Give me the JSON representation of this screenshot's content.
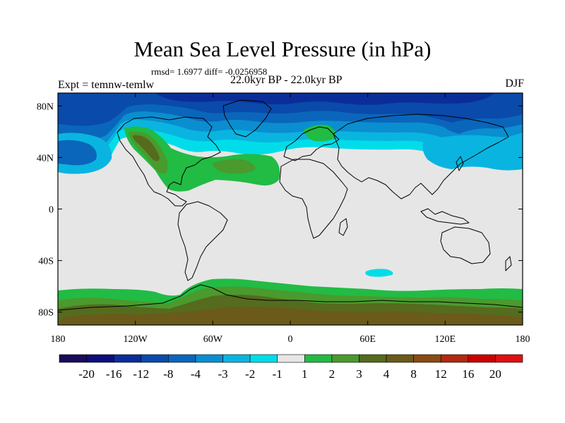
{
  "header": {
    "title": "Mean Sea Level Pressure (in hPa)",
    "stats": "rmsd= 1.6977 diff= -0.0256958",
    "period": "22.0kyr BP - 22.0kyr BP",
    "experiment": "Expt = temnw-temlw",
    "season": "DJF"
  },
  "axes": {
    "lat_labels": [
      "80N",
      "40N",
      "0",
      "40S",
      "80S"
    ],
    "lat_values": [
      80,
      40,
      0,
      -40,
      -80
    ],
    "lon_labels": [
      "180",
      "120W",
      "60W",
      "0",
      "60E",
      "120E",
      "180"
    ],
    "lon_values": [
      -180,
      -120,
      -60,
      0,
      60,
      120,
      180
    ],
    "lat_range": [
      -90,
      90
    ],
    "lon_range": [
      -180,
      180
    ]
  },
  "colorbar": {
    "labels": [
      "-20",
      "-16",
      "-12",
      "-8",
      "-4",
      "-3",
      "-2",
      "-1",
      "1",
      "2",
      "3",
      "4",
      "8",
      "12",
      "16",
      "20"
    ],
    "colors": [
      "#1a0a5c",
      "#0d0d7a",
      "#0a2d9a",
      "#0a4aaa",
      "#0a66bb",
      "#0a8ed0",
      "#0ab4e0",
      "#00dde8",
      "#e6e6e6",
      "#22bb44",
      "#4a9a2e",
      "#556b1e",
      "#6b5a1a",
      "#8a4a14",
      "#b02a10",
      "#cc0000",
      "#e01010"
    ]
  },
  "colors": {
    "background_field": "#e6e6e6",
    "coastline": "#000000"
  }
}
